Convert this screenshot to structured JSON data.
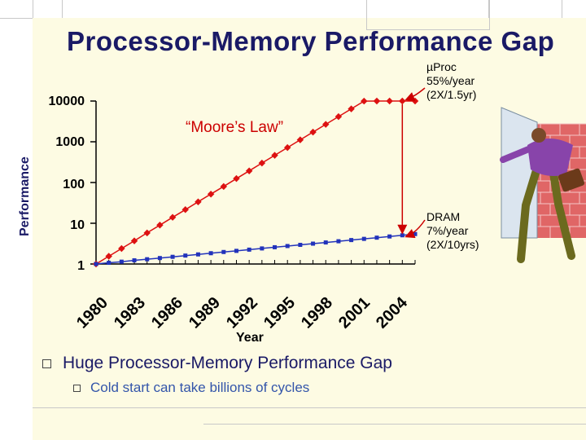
{
  "slide": {
    "title": "Processor-Memory Performance Gap",
    "bullets": [
      {
        "text": "Huge Processor-Memory Performance Gap"
      },
      {
        "text": "Cold start can take billions of cycles"
      }
    ]
  },
  "annotations": {
    "moore": "“Moore’s Law”",
    "cpu": [
      "µProc",
      "55%/year",
      "(2X/1.5yr)"
    ],
    "dram": [
      "DRAM",
      "7%/year",
      "(2X/10yrs)"
    ]
  },
  "chart_data": {
    "type": "line",
    "title": "Processor-Memory Performance Gap",
    "xlabel": "Year",
    "ylabel": "Performance",
    "yscale": "log",
    "ylim": [
      1,
      10000
    ],
    "yticks": [
      "10000",
      "1000",
      "100",
      "10",
      "1"
    ],
    "xticks": [
      "1980",
      "1983",
      "1986",
      "1989",
      "1992",
      "1995",
      "1998",
      "2001",
      "2004"
    ],
    "x": [
      1980,
      1981,
      1982,
      1983,
      1984,
      1985,
      1986,
      1987,
      1988,
      1989,
      1990,
      1991,
      1992,
      1993,
      1994,
      1995,
      1996,
      1997,
      1998,
      1999,
      2000,
      2001,
      2002,
      2003,
      2004,
      2005
    ],
    "series": [
      {
        "name": "µProc",
        "color": "#dd1111",
        "values": [
          1,
          1.55,
          2.4,
          3.7,
          5.8,
          9,
          14,
          21.6,
          33.5,
          52,
          80,
          125,
          193,
          300,
          465,
          720,
          1115,
          1730,
          2680,
          4150,
          6430,
          9970,
          10000,
          10000,
          10000,
          10000
        ]
      },
      {
        "name": "DRAM",
        "color": "#2233bb",
        "values": [
          1,
          1.07,
          1.14,
          1.23,
          1.31,
          1.4,
          1.5,
          1.61,
          1.72,
          1.84,
          1.97,
          2.1,
          2.25,
          2.41,
          2.58,
          2.76,
          2.95,
          3.16,
          3.38,
          3.62,
          3.87,
          4.14,
          4.43,
          4.74,
          5.07,
          5.43
        ]
      }
    ]
  }
}
